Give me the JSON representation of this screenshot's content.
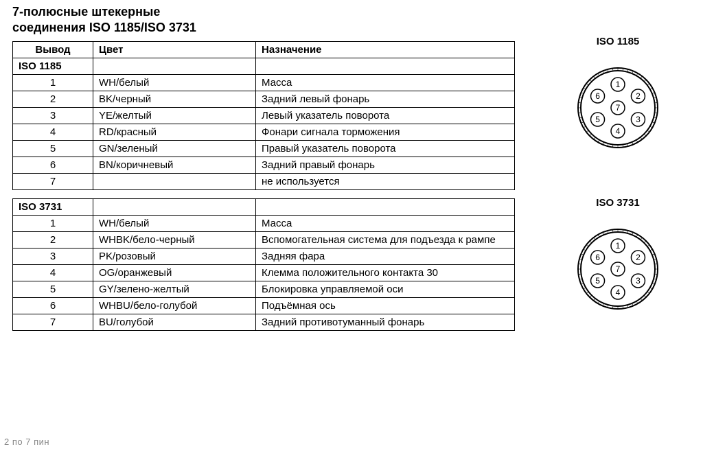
{
  "title_line1": "7-полюсные штекерные",
  "title_line2": "соединения ISO 1185/ISO 3731",
  "headers": {
    "pin": "Вывод",
    "color": "Цвет",
    "function": "Назначение"
  },
  "sections": [
    {
      "name": "ISO 1185",
      "rows": [
        {
          "pin": "1",
          "color": "WH/белый",
          "function": "Масса"
        },
        {
          "pin": "2",
          "color": "BK/черный",
          "function": "Задний левый фонарь"
        },
        {
          "pin": "3",
          "color": "YE/желтый",
          "function": "Левый указатель поворота"
        },
        {
          "pin": "4",
          "color": "RD/красный",
          "function": "Фонари сигнала торможения"
        },
        {
          "pin": "5",
          "color": "GN/зеленый",
          "function": "Правый указатель поворота"
        },
        {
          "pin": "6",
          "color": "BN/коричневый",
          "function": "Задний правый фонарь"
        },
        {
          "pin": "7",
          "color": "",
          "function": "не используется"
        }
      ]
    },
    {
      "name": "ISO 3731",
      "rows": [
        {
          "pin": "1",
          "color": "WH/белый",
          "function": "Масса"
        },
        {
          "pin": "2",
          "color": "WHBK/бело-черный",
          "function": "Вспомогательная система для подъезда к рампе"
        },
        {
          "pin": "3",
          "color": "PK/розовый",
          "function": "Задняя фара"
        },
        {
          "pin": "4",
          "color": "OG/оранжевый",
          "function": "Клемма положительного контакта 30"
        },
        {
          "pin": "5",
          "color": "GY/зелено-желтый",
          "function": "Блокировка управляемой оси"
        },
        {
          "pin": "6",
          "color": "WHBU/бело-голубой",
          "function": "Подъёмная ось"
        },
        {
          "pin": "7",
          "color": "BU/голубой",
          "function": "Задний противотуманный фонарь"
        }
      ]
    }
  ],
  "connectors": [
    {
      "title": "ISO 1185"
    },
    {
      "title": "ISO 3731"
    }
  ],
  "diagram": {
    "outer_radius": 54,
    "outer_edge": 58,
    "pin_radius": 10,
    "orbit_radius": 34,
    "stroke": "#000000",
    "fill": "#ffffff",
    "font_size": 12,
    "pins": [
      {
        "label": "1",
        "angle_deg": -90
      },
      {
        "label": "2",
        "angle_deg": -30
      },
      {
        "label": "3",
        "angle_deg": 30
      },
      {
        "label": "4",
        "angle_deg": 90
      },
      {
        "label": "5",
        "angle_deg": 150
      },
      {
        "label": "6",
        "angle_deg": 210
      },
      {
        "label": "7",
        "center": true
      }
    ]
  },
  "footer": "2 по 7 пин"
}
